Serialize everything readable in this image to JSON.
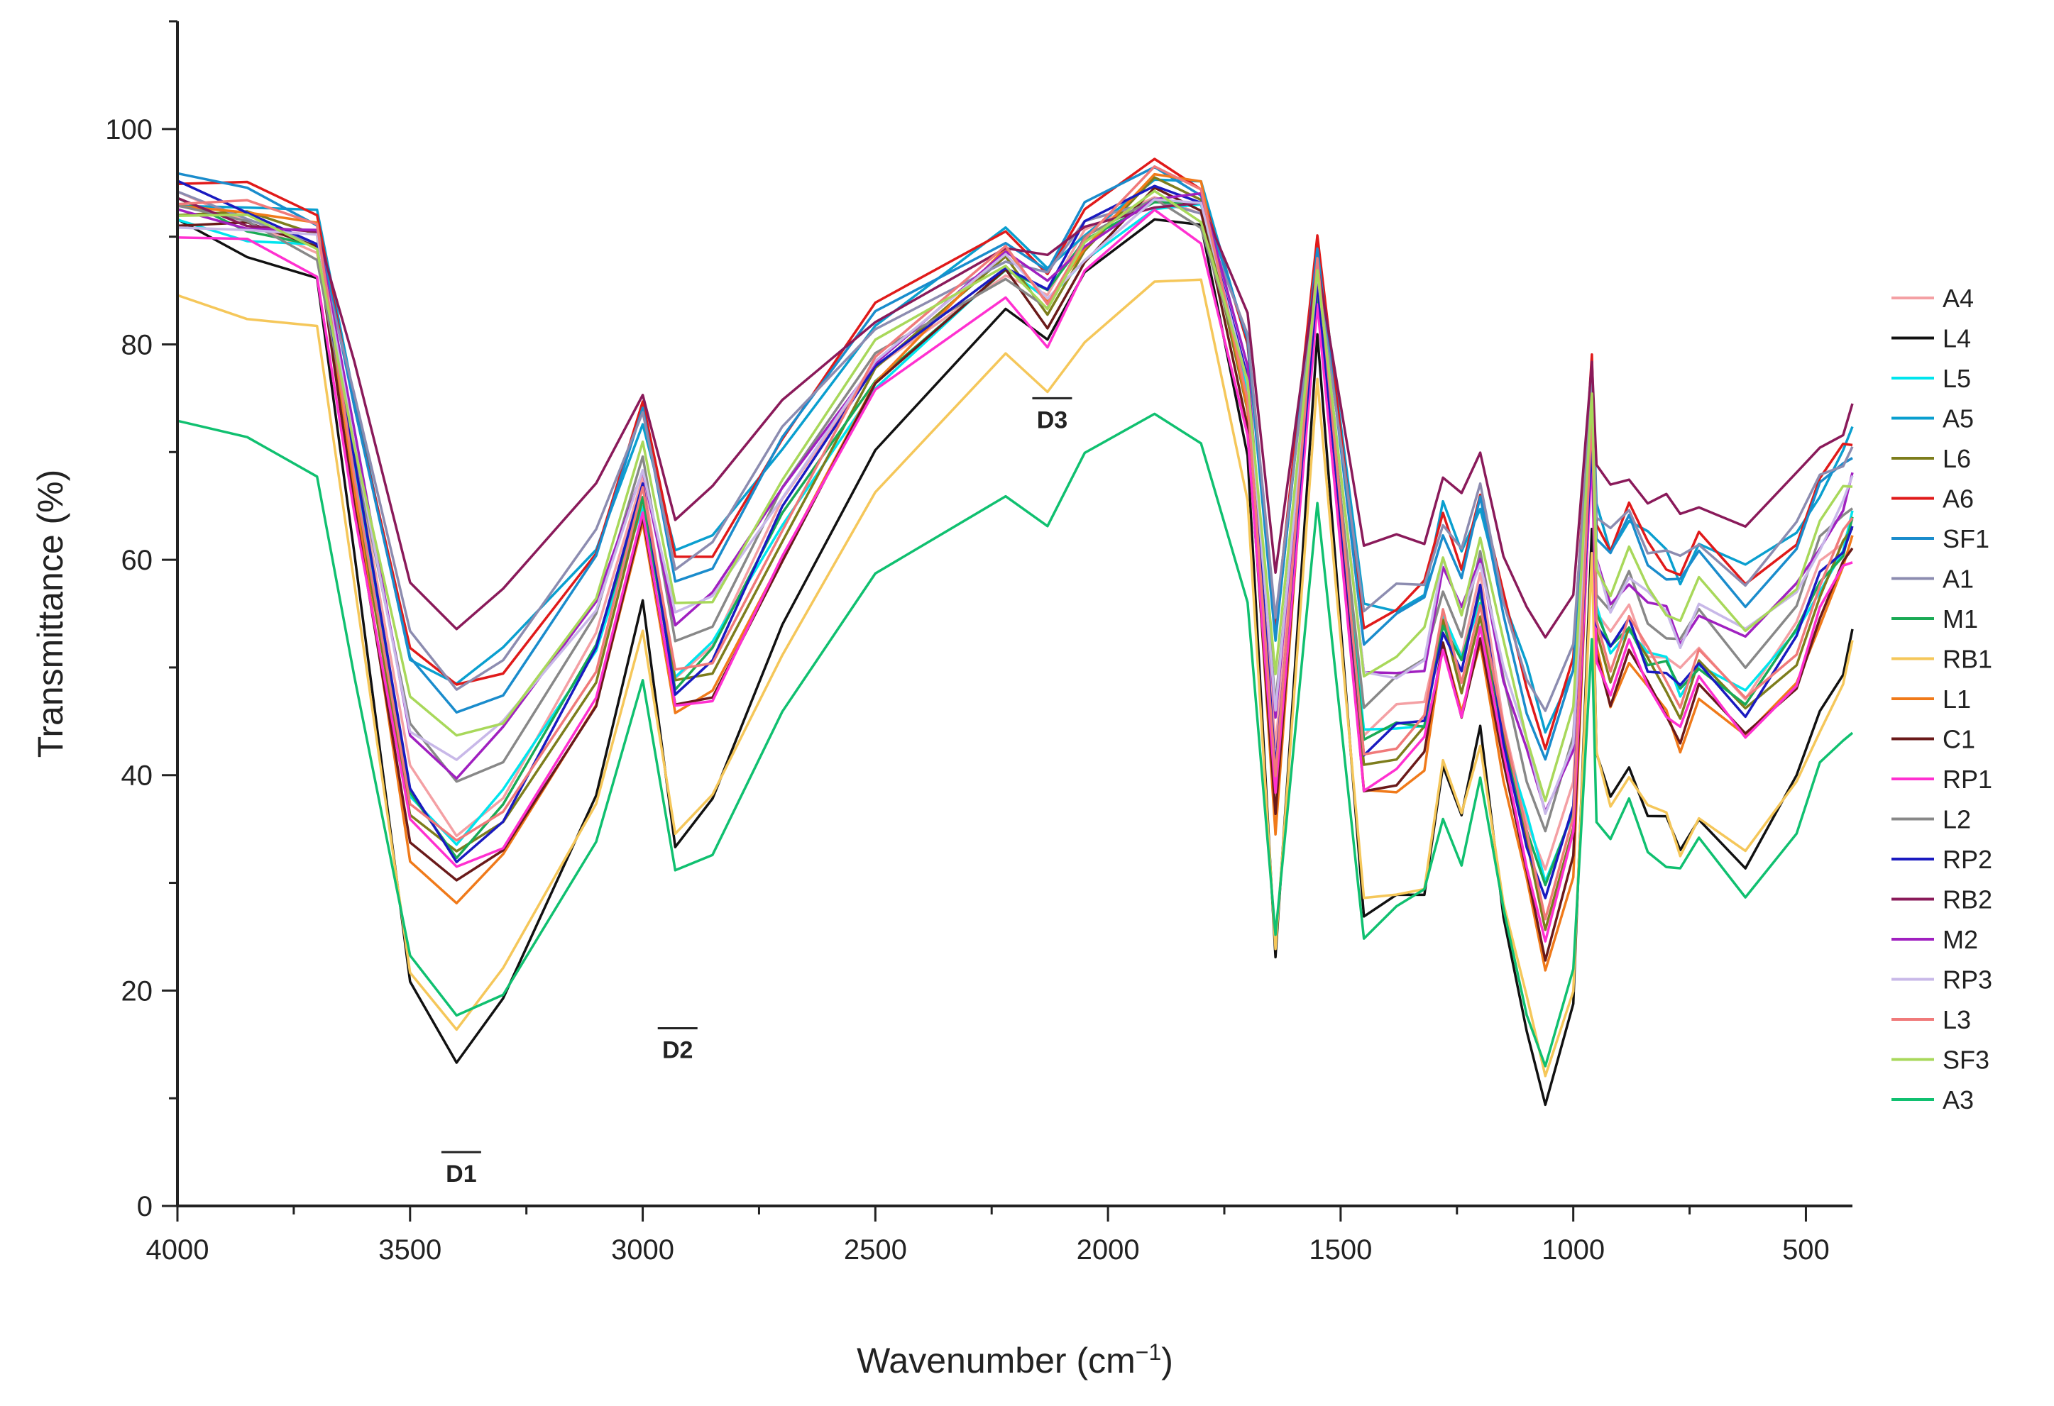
{
  "chart_data": {
    "type": "line",
    "title": "",
    "xlabel_main": "Wavenumber (cm",
    "xlabel_sup": "−1",
    "xlabel_close": ")",
    "ylabel": "Transmittance (%)",
    "xlim": [
      4000,
      400
    ],
    "ylim": [
      0,
      110
    ],
    "x_ticks": [
      4000,
      3500,
      3000,
      2500,
      2000,
      1500,
      1000,
      500
    ],
    "y_ticks": [
      0,
      20,
      40,
      60,
      80,
      100
    ],
    "x_tick_labels": [
      "4000",
      "3500",
      "3000",
      "2500",
      "2000",
      "1500",
      "1000",
      "500"
    ],
    "y_tick_labels": [
      "0",
      "20",
      "40",
      "60",
      "80",
      "100"
    ],
    "legend_position": "right",
    "regions": [
      {
        "label": "D1",
        "x": 3390,
        "y": 5
      },
      {
        "label": "D2",
        "x": 2925,
        "y": 16.5
      },
      {
        "label": "D3",
        "x": 2120,
        "y": 75
      }
    ],
    "x": [
      4000,
      3850,
      3700,
      3620,
      3500,
      3400,
      3300,
      3100,
      3000,
      2930,
      2850,
      2700,
      2500,
      2220,
      2130,
      2050,
      1900,
      1800,
      1700,
      1640,
      1550,
      1450,
      1380,
      1320,
      1280,
      1240,
      1200,
      1150,
      1100,
      1060,
      1000,
      960,
      950,
      920,
      880,
      840,
      800,
      770,
      730,
      630,
      520,
      470,
      420,
      400
    ],
    "base_shape": [
      0.0,
      0.02,
      0.05,
      0.35,
      0.78,
      0.85,
      0.8,
      0.6,
      0.38,
      0.63,
      0.6,
      0.42,
      0.22,
      0.08,
      0.13,
      0.05,
      -0.02,
      0.0,
      0.25,
      0.75,
      0.1,
      0.72,
      0.7,
      0.68,
      0.55,
      0.62,
      0.52,
      0.7,
      0.83,
      0.92,
      0.8,
      0.3,
      0.55,
      0.6,
      0.55,
      0.6,
      0.62,
      0.65,
      0.6,
      0.66,
      0.58,
      0.5,
      0.45,
      0.42
    ],
    "series": [
      {
        "name": "A4",
        "color": "#f4a0a4",
        "top": 93,
        "dip": 68
      },
      {
        "name": "L4",
        "color": "#111111",
        "top": 91,
        "dip": 90
      },
      {
        "name": "L5",
        "color": "#00e5ee",
        "top": 92,
        "dip": 68
      },
      {
        "name": "A5",
        "color": "#0a9fcf",
        "top": 94,
        "dip": 54
      },
      {
        "name": "L6",
        "color": "#7d7d1c",
        "top": 93,
        "dip": 72
      },
      {
        "name": "A6",
        "color": "#e01a1a",
        "top": 95,
        "dip": 56
      },
      {
        "name": "SF1",
        "color": "#1a8ccc",
        "top": 95,
        "dip": 58
      },
      {
        "name": "A1",
        "color": "#8c8cb0",
        "top": 93,
        "dip": 52
      },
      {
        "name": "M1",
        "color": "#1aaa55",
        "top": 93,
        "dip": 70
      },
      {
        "name": "RB1",
        "color": "#f5c75a",
        "top": 85,
        "dip": 80
      },
      {
        "name": "L1",
        "color": "#f07a1a",
        "top": 94,
        "dip": 78
      },
      {
        "name": "C1",
        "color": "#6a1a1a",
        "top": 92,
        "dip": 74
      },
      {
        "name": "RP1",
        "color": "#ff30d0",
        "top": 90,
        "dip": 70
      },
      {
        "name": "L2",
        "color": "#888888",
        "top": 92,
        "dip": 62
      },
      {
        "name": "RP2",
        "color": "#1a1ac0",
        "top": 94,
        "dip": 72
      },
      {
        "name": "RB2",
        "color": "#8a1a5a",
        "top": 93,
        "dip": 45
      },
      {
        "name": "M2",
        "color": "#a020c0",
        "top": 93,
        "dip": 62
      },
      {
        "name": "RP3",
        "color": "#c8b8e8",
        "top": 92,
        "dip": 60
      },
      {
        "name": "L3",
        "color": "#f07a7a",
        "top": 94,
        "dip": 72
      },
      {
        "name": "SF3",
        "color": "#a8d85a",
        "top": 92,
        "dip": 58
      },
      {
        "name": "A3",
        "color": "#10c070",
        "top": 72,
        "dip": 64
      }
    ]
  }
}
